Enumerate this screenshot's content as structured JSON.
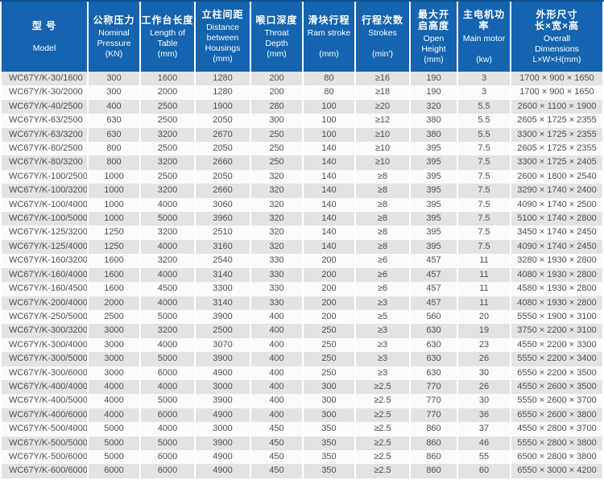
{
  "colors": {
    "header_bg": "#1464af",
    "header_border": "#0f4f91",
    "header_text": "#ffffff",
    "row_alt": "#e3e3e3",
    "row_bg": "#fbfbfb",
    "body_text": "#4f4f4f"
  },
  "table": {
    "title": "WC67Y/K press brake specification table",
    "columns": [
      {
        "id": "model",
        "cn": "型 号",
        "en": "Model"
      },
      {
        "id": "nominal-pressure",
        "cn": "公称压力",
        "en": "Nominal\nPressure\n(KN)"
      },
      {
        "id": "table-length",
        "cn": "工作台长度",
        "en": "Length of\nTable\n(mm)"
      },
      {
        "id": "housing-distance",
        "cn": "立柱间距",
        "en": "Distance\nbetween\nHousings\n(mm)"
      },
      {
        "id": "throat-depth",
        "cn": "喉口深度",
        "en": "Throat\nDepth\n(mm)"
      },
      {
        "id": "ram-stroke",
        "cn": "滑块行程",
        "en": "Ram stroke\n\n(mm)"
      },
      {
        "id": "strokes",
        "cn": "行程次数",
        "en": "Strokes\n\n(min')"
      },
      {
        "id": "open-height",
        "cn": "最大开\n启高度",
        "en": "Open\nHeight\n(mm)"
      },
      {
        "id": "main-motor",
        "cn": "主电机功率",
        "en": "Main motor\n\n(kw)"
      },
      {
        "id": "overall-dimensions",
        "cn": "外形尺寸\n长×宽×高",
        "en": "Overall\nDimensions\nL×W×H(mm)"
      }
    ],
    "rows": [
      [
        "WC67Y/K-30/1600",
        "300",
        "1600",
        "1280",
        "200",
        "80",
        "≥16",
        "190",
        "3",
        "1700 × 900 × 1650"
      ],
      [
        "WC67Y/K-30/2000",
        "300",
        "2000",
        "1280",
        "200",
        "80",
        "≥18",
        "190",
        "3",
        "1700 × 900 × 1650"
      ],
      [
        "WC67Y/K-40/2500",
        "400",
        "2500",
        "1900",
        "280",
        "100",
        "≥20",
        "320",
        "5.5",
        "2600 × 1100 × 1900"
      ],
      [
        "WC67Y/K-63/2500",
        "630",
        "2500",
        "2050",
        "300",
        "100",
        "≥12",
        "380",
        "5.5",
        "2605 × 1725 × 2355"
      ],
      [
        "WC67Y/K-63/3200",
        "630",
        "3200",
        "2670",
        "250",
        "100",
        "≥10",
        "380",
        "5.5",
        "3300 × 1725 × 2355"
      ],
      [
        "WC67Y/K-80/2500",
        "800",
        "2500",
        "2050",
        "250",
        "140",
        "≥10",
        "395",
        "7.5",
        "2605 × 1725 × 2355"
      ],
      [
        "WC67Y/K-80/3200",
        "800",
        "3200",
        "2660",
        "250",
        "140",
        "≥10",
        "395",
        "7.5",
        "3300 × 1725 × 2405"
      ],
      [
        "WC67Y/K-100/2500",
        "1000",
        "2500",
        "2050",
        "320",
        "140",
        "≥8",
        "395",
        "7.5",
        "2600 × 1800 × 2540"
      ],
      [
        "WC67Y/K-100/3200",
        "1000",
        "3200",
        "2660",
        "320",
        "140",
        "≥8",
        "395",
        "7.5",
        "3290 × 1740 × 2400"
      ],
      [
        "WC67Y/K-100/4000",
        "1000",
        "4000",
        "3060",
        "320",
        "140",
        "≥8",
        "395",
        "7.5",
        "4090 × 1740 × 2500"
      ],
      [
        "WC67Y/K-100/5000",
        "1000",
        "5000",
        "3960",
        "320",
        "140",
        "≥8",
        "395",
        "7.5",
        "5100 × 1740 × 2800"
      ],
      [
        "WC67Y/K-125/3200",
        "1250",
        "3200",
        "2510",
        "320",
        "140",
        "≥8",
        "395",
        "7.5",
        "3450 × 1740 × 2450"
      ],
      [
        "WC67Y/K-125/4000",
        "1250",
        "4000",
        "3160",
        "320",
        "140",
        "≥8",
        "395",
        "7.5",
        "4090 × 1740 × 2450"
      ],
      [
        "WC67Y/K-160/3200",
        "1600",
        "3200",
        "2540",
        "330",
        "200",
        "≥6",
        "457",
        "11",
        "3280 × 1930 × 2800"
      ],
      [
        "WC67Y/K-160/4000",
        "1600",
        "4000",
        "3140",
        "330",
        "200",
        "≥6",
        "457",
        "11",
        "4080 × 1930 × 2800"
      ],
      [
        "WC67Y/K-160/4500",
        "1600",
        "4500",
        "3300",
        "330",
        "200",
        "≥6",
        "457",
        "11",
        "4580 × 1930 × 2800"
      ],
      [
        "WC67Y/K-200/4000",
        "2000",
        "4000",
        "3140",
        "330",
        "200",
        "≥3",
        "457",
        "11",
        "4080 × 1930 × 2800"
      ],
      [
        "WC67Y/K-250/5000",
        "2500",
        "5000",
        "3900",
        "400",
        "200",
        "≥5",
        "560",
        "20",
        "5550 × 1900 × 3100"
      ],
      [
        "WC67Y/K-300/3200",
        "3000",
        "3200",
        "2500",
        "400",
        "250",
        "≥3",
        "630",
        "19",
        "3750 × 2200 × 3100"
      ],
      [
        "WC67Y/K-300/4000",
        "3000",
        "4000",
        "3070",
        "400",
        "250",
        "≥3",
        "630",
        "23",
        "4550 × 2200 × 3300"
      ],
      [
        "WC67Y/K-300/5000",
        "3000",
        "5000",
        "3900",
        "400",
        "250",
        "≥3",
        "630",
        "26",
        "5550 × 2200 × 3400"
      ],
      [
        "WC67Y/K-300/6000",
        "3000",
        "6000",
        "4900",
        "400",
        "250",
        "≥3",
        "630",
        "30",
        "6550 × 2200 × 3500"
      ],
      [
        "WC67Y/K-400/4000",
        "4000",
        "4000",
        "3000",
        "400",
        "300",
        "≥2.5",
        "770",
        "26",
        "4550 × 2600 × 3500"
      ],
      [
        "WC67Y/K-400/5000",
        "4000",
        "5000",
        "3900",
        "400",
        "300",
        "≥2.5",
        "770",
        "30",
        "5550 × 2600 × 3700"
      ],
      [
        "WC67Y/K-400/6000",
        "4000",
        "6000",
        "4900",
        "400",
        "300",
        "≥2.5",
        "770",
        "36",
        "6550 × 2600 × 3800"
      ],
      [
        "WC67Y/K-500/4000",
        "5000",
        "4000",
        "3000",
        "450",
        "350",
        "≥2.5",
        "860",
        "37",
        "4550 × 2800 × 3700"
      ],
      [
        "WC67Y/K-500/5000",
        "5000",
        "5000",
        "3900",
        "450",
        "350",
        "≥2.5",
        "860",
        "46",
        "5550 × 2800 × 3800"
      ],
      [
        "WC67Y/K-500/6000",
        "5000",
        "6000",
        "4900",
        "450",
        "350",
        "≥2.5",
        "860",
        "55",
        "6500 × 2800 × 3800"
      ],
      [
        "WC67Y/K-600/6000",
        "6000",
        "6000",
        "4900",
        "450",
        "350",
        "≥2.5",
        "860",
        "60",
        "6550 × 3000 × 4200"
      ]
    ]
  }
}
